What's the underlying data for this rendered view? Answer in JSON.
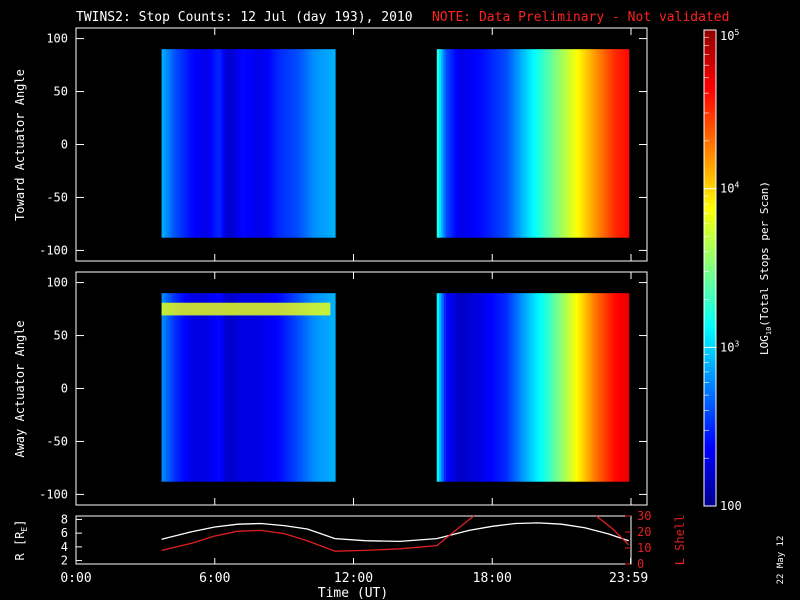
{
  "header": {
    "title": "TWINS2: Stop Counts: 12 Jul (day 193), 2010",
    "note": "NOTE: Data Preliminary - Not validated"
  },
  "datestamp": "22 May 12",
  "colors": {
    "background": "#000000",
    "axes": "#ffffff",
    "note": "#ff2020",
    "r_line": "#ffffff",
    "l_shell_line": "#e02020"
  },
  "chart_data": [
    {
      "type": "heatmap",
      "name": "toward",
      "ylabel": "Toward Actuator Angle",
      "ylim": [
        -110,
        110
      ],
      "yticks": [
        100,
        50,
        0,
        -50,
        -100
      ],
      "ytick_labels": [
        "100",
        "50",
        "0",
        "-50",
        "-100"
      ],
      "x_range_hours": [
        0,
        24
      ],
      "coverage_hours": [
        [
          3.7,
          11.2
        ],
        [
          15.6,
          23.9
        ]
      ],
      "angle_range": [
        -88,
        90
      ],
      "log_counts_profile": [
        {
          "t": 3.7,
          "v": 2.9
        },
        {
          "t": 4.3,
          "v": 2.6
        },
        {
          "t": 5.0,
          "v": 2.4
        },
        {
          "t": 5.6,
          "v": 2.3
        },
        {
          "t": 6.2,
          "v": 2.5
        },
        {
          "t": 6.6,
          "v": 2.2
        },
        {
          "t": 7.2,
          "v": 2.4
        },
        {
          "t": 8.0,
          "v": 2.3
        },
        {
          "t": 8.8,
          "v": 2.5
        },
        {
          "t": 9.6,
          "v": 2.6
        },
        {
          "t": 10.3,
          "v": 2.8
        },
        {
          "t": 11.2,
          "v": 2.9
        },
        {
          "t": 15.6,
          "v": 3.3
        },
        {
          "t": 16.0,
          "v": 2.6
        },
        {
          "t": 16.6,
          "v": 2.3
        },
        {
          "t": 17.5,
          "v": 2.4
        },
        {
          "t": 18.6,
          "v": 2.6
        },
        {
          "t": 19.5,
          "v": 3.0
        },
        {
          "t": 20.5,
          "v": 3.4
        },
        {
          "t": 21.5,
          "v": 3.8
        },
        {
          "t": 22.5,
          "v": 4.2
        },
        {
          "t": 23.3,
          "v": 4.5
        },
        {
          "t": 23.9,
          "v": 4.6
        }
      ]
    },
    {
      "type": "heatmap",
      "name": "away",
      "ylabel": "Away Actuator Angle",
      "ylim": [
        -110,
        110
      ],
      "yticks": [
        100,
        50,
        0,
        -50,
        -100
      ],
      "ytick_labels": [
        "100",
        "50",
        "0",
        "-50",
        "-100"
      ],
      "x_range_hours": [
        0,
        24
      ],
      "coverage_hours": [
        [
          3.7,
          11.2
        ],
        [
          15.6,
          23.9
        ]
      ],
      "angle_range": [
        -88,
        90
      ],
      "log_counts_profile": [
        {
          "t": 3.7,
          "v": 2.8
        },
        {
          "t": 4.3,
          "v": 2.5
        },
        {
          "t": 5.0,
          "v": 2.3
        },
        {
          "t": 5.6,
          "v": 2.3
        },
        {
          "t": 6.2,
          "v": 2.4
        },
        {
          "t": 6.6,
          "v": 2.2
        },
        {
          "t": 7.2,
          "v": 2.3
        },
        {
          "t": 8.0,
          "v": 2.3
        },
        {
          "t": 8.8,
          "v": 2.4
        },
        {
          "t": 9.6,
          "v": 2.6
        },
        {
          "t": 10.3,
          "v": 2.8
        },
        {
          "t": 11.2,
          "v": 2.9
        },
        {
          "t": 15.6,
          "v": 3.2
        },
        {
          "t": 16.0,
          "v": 2.4
        },
        {
          "t": 16.6,
          "v": 2.2
        },
        {
          "t": 17.5,
          "v": 2.3
        },
        {
          "t": 18.6,
          "v": 2.5
        },
        {
          "t": 19.5,
          "v": 2.9
        },
        {
          "t": 20.5,
          "v": 3.3
        },
        {
          "t": 21.5,
          "v": 3.8
        },
        {
          "t": 22.5,
          "v": 4.3
        },
        {
          "t": 23.3,
          "v": 4.6
        },
        {
          "t": 23.9,
          "v": 4.7
        }
      ],
      "band": {
        "angle": 75,
        "hours": [
          3.7,
          11.0
        ],
        "log_counts": 3.8
      }
    },
    {
      "type": "line",
      "name": "orbit",
      "ylabel": "R [RE]",
      "ylabel_main": "R [R",
      "ylabel_sub": "E",
      "ylabel_end": "]",
      "y2label": "L Shell",
      "ylim": [
        1.5,
        8.5
      ],
      "yticks": [
        2,
        4,
        6,
        8
      ],
      "ytick_labels": [
        "2",
        "4",
        "6",
        "8"
      ],
      "y2lim": [
        0,
        30
      ],
      "y2ticks": [
        0,
        10,
        20,
        30
      ],
      "y2tick_labels": [
        "0",
        "10",
        "20",
        "30"
      ],
      "xlabel": "Time (UT)",
      "xlim": [
        0,
        24
      ],
      "xticks": [
        0,
        6,
        12,
        18,
        23.983
      ],
      "xtick_labels": [
        "0:00",
        "6:00",
        "12:00",
        "18:00",
        "23:59"
      ],
      "series": [
        {
          "axis": "left",
          "x": [
            3.7,
            5.0,
            6.0,
            7.0,
            8.0,
            9.0,
            10.0,
            11.2,
            12.5,
            14.0,
            15.6,
            17.0,
            18.0,
            19.0,
            20.0,
            21.0,
            22.0,
            23.0,
            23.9
          ],
          "y": [
            5.1,
            6.2,
            6.9,
            7.3,
            7.4,
            7.1,
            6.6,
            5.2,
            4.9,
            4.8,
            5.2,
            6.4,
            7.0,
            7.4,
            7.5,
            7.3,
            6.8,
            5.9,
            4.9
          ]
        },
        {
          "axis": "right",
          "x": [
            3.7,
            5.0,
            6.0,
            7.0,
            8.0,
            9.0,
            10.0,
            11.2,
            12.5,
            14.0,
            15.6,
            16.5,
            17.2
          ],
          "y": [
            8.5,
            13.0,
            17.5,
            20.5,
            21.0,
            19.0,
            14.5,
            8.0,
            8.5,
            9.5,
            11.5,
            22.0,
            31.0
          ]
        },
        {
          "axis": "right",
          "x": [
            22.5,
            23.2,
            23.9
          ],
          "y": [
            31.0,
            22.0,
            12.0
          ]
        }
      ]
    },
    {
      "type": "colorbar",
      "name": "colorbar",
      "label": "LOG10(Total Stops per Scan)",
      "label_main": "LOG",
      "label_sub": "10",
      "label_end": "(Total Stops per Scan)",
      "scale": "log",
      "range": [
        100,
        100000
      ],
      "major_ticks": [
        {
          "v": 100,
          "label": "100",
          "base": "100",
          "exp": ""
        },
        {
          "v": 1000,
          "label": "10^3",
          "base": "10",
          "exp": "3"
        },
        {
          "v": 10000,
          "label": "10^4",
          "base": "10",
          "exp": "4"
        },
        {
          "v": 100000,
          "label": "10^5",
          "base": "10",
          "exp": "5"
        }
      ]
    }
  ]
}
